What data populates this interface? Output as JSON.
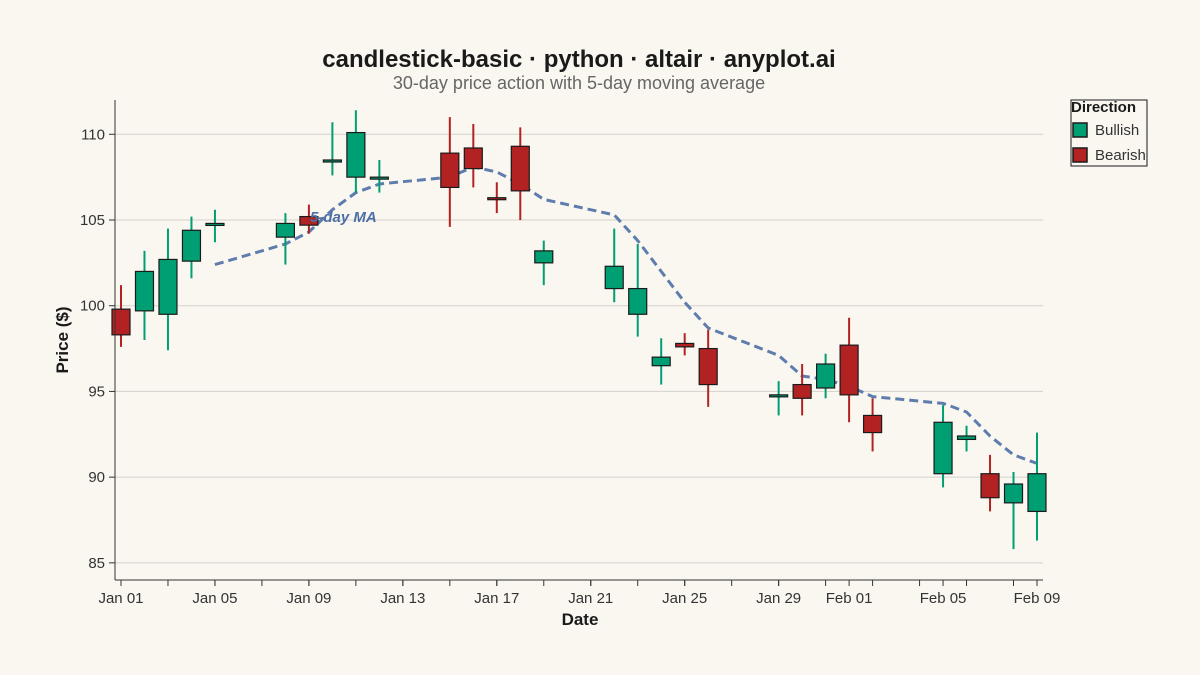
{
  "chart_data": {
    "type": "candlestick",
    "title": "candlestick-basic · python · altair · anyplot.ai",
    "subtitle": "30-day price action with 5-day moving average",
    "xlabel": "Date",
    "ylabel": "Price ($)",
    "ylim": [
      84,
      112
    ],
    "yticks": [
      85,
      90,
      95,
      100,
      105,
      110
    ],
    "x_start": "2024-01-01",
    "x_end": "2024-02-09",
    "xtick_labels": [
      "Jan 01",
      "Jan 05",
      "Jan 09",
      "Jan 13",
      "Jan 17",
      "Jan 21",
      "Jan 25",
      "Jan 29",
      "Feb 01",
      "Feb 05",
      "Feb 09"
    ],
    "xtick_dates": [
      "2024-01-01",
      "2024-01-05",
      "2024-01-09",
      "2024-01-13",
      "2024-01-17",
      "2024-01-21",
      "2024-01-25",
      "2024-01-29",
      "2024-02-01",
      "2024-02-05",
      "2024-02-09"
    ],
    "grid": true,
    "legend": {
      "title": "Direction",
      "placement": "top-right",
      "entries": [
        {
          "name": "Bullish",
          "color": "#009E73"
        },
        {
          "name": "Bearish",
          "color": "#B22222"
        }
      ]
    },
    "ma_label": "5-day MA",
    "ma_color": "#4C6FA5",
    "colors": {
      "bullish": "#009E73",
      "bearish": "#B22222",
      "outline": "#1a1a1a"
    },
    "candles": [
      {
        "date": "2024-01-01",
        "open": 99.8,
        "high": 101.2,
        "low": 97.6,
        "close": 98.3
      },
      {
        "date": "2024-01-02",
        "open": 99.7,
        "high": 103.2,
        "low": 98.0,
        "close": 102.0
      },
      {
        "date": "2024-01-03",
        "open": 99.5,
        "high": 104.5,
        "low": 97.4,
        "close": 102.7
      },
      {
        "date": "2024-01-04",
        "open": 102.6,
        "high": 105.2,
        "low": 101.6,
        "close": 104.4
      },
      {
        "date": "2024-01-05",
        "open": 104.7,
        "high": 105.6,
        "low": 103.7,
        "close": 104.8
      },
      {
        "date": "2024-01-08",
        "open": 104.0,
        "high": 105.4,
        "low": 102.4,
        "close": 104.8
      },
      {
        "date": "2024-01-09",
        "open": 105.2,
        "high": 105.9,
        "low": 104.2,
        "close": 104.7
      },
      {
        "date": "2024-01-10",
        "open": 108.4,
        "high": 110.7,
        "low": 107.6,
        "close": 108.5
      },
      {
        "date": "2024-01-11",
        "open": 107.5,
        "high": 111.4,
        "low": 106.6,
        "close": 110.1
      },
      {
        "date": "2024-01-12",
        "open": 107.5,
        "high": 108.5,
        "low": 106.6,
        "close": 107.5
      },
      {
        "date": "2024-01-15",
        "open": 108.9,
        "high": 111.0,
        "low": 104.6,
        "close": 106.9
      },
      {
        "date": "2024-01-16",
        "open": 109.2,
        "high": 110.6,
        "low": 106.9,
        "close": 108.0
      },
      {
        "date": "2024-01-17",
        "open": 106.3,
        "high": 107.2,
        "low": 105.4,
        "close": 106.2
      },
      {
        "date": "2024-01-18",
        "open": 109.3,
        "high": 110.4,
        "low": 105.0,
        "close": 106.7
      },
      {
        "date": "2024-01-19",
        "open": 102.5,
        "high": 103.8,
        "low": 101.2,
        "close": 103.2
      },
      {
        "date": "2024-01-22",
        "open": 101.0,
        "high": 104.5,
        "low": 100.2,
        "close": 102.3
      },
      {
        "date": "2024-01-23",
        "open": 99.5,
        "high": 103.6,
        "low": 98.2,
        "close": 101.0
      },
      {
        "date": "2024-01-24",
        "open": 96.5,
        "high": 98.1,
        "low": 95.4,
        "close": 97.0
      },
      {
        "date": "2024-01-25",
        "open": 97.8,
        "high": 98.4,
        "low": 97.1,
        "close": 97.6
      },
      {
        "date": "2024-01-26",
        "open": 97.5,
        "high": 98.6,
        "low": 94.1,
        "close": 95.4
      },
      {
        "date": "2024-01-29",
        "open": 94.8,
        "high": 95.6,
        "low": 93.6,
        "close": 94.8
      },
      {
        "date": "2024-01-30",
        "open": 95.4,
        "high": 96.6,
        "low": 93.6,
        "close": 94.6
      },
      {
        "date": "2024-01-31",
        "open": 95.2,
        "high": 97.2,
        "low": 94.6,
        "close": 96.6
      },
      {
        "date": "2024-02-01",
        "open": 97.7,
        "high": 99.3,
        "low": 93.2,
        "close": 94.8
      },
      {
        "date": "2024-02-02",
        "open": 93.6,
        "high": 94.6,
        "low": 91.5,
        "close": 92.6
      },
      {
        "date": "2024-02-05",
        "open": 90.2,
        "high": 94.2,
        "low": 89.4,
        "close": 93.2
      },
      {
        "date": "2024-02-06",
        "open": 92.2,
        "high": 93.0,
        "low": 91.5,
        "close": 92.4
      },
      {
        "date": "2024-02-07",
        "open": 90.2,
        "high": 91.3,
        "low": 88.0,
        "close": 88.8
      },
      {
        "date": "2024-02-08",
        "open": 88.5,
        "high": 90.3,
        "low": 85.8,
        "close": 89.6
      },
      {
        "date": "2024-02-09",
        "open": 88.0,
        "high": 92.6,
        "low": 86.3,
        "close": 90.2
      }
    ],
    "moving_average": [
      {
        "date": "2024-01-05",
        "value": 102.4
      },
      {
        "date": "2024-01-08",
        "value": 103.6
      },
      {
        "date": "2024-01-09",
        "value": 104.3
      },
      {
        "date": "2024-01-10",
        "value": 105.6
      },
      {
        "date": "2024-01-11",
        "value": 106.6
      },
      {
        "date": "2024-01-12",
        "value": 107.1
      },
      {
        "date": "2024-01-15",
        "value": 107.5
      },
      {
        "date": "2024-01-16",
        "value": 108.1
      },
      {
        "date": "2024-01-17",
        "value": 107.8
      },
      {
        "date": "2024-01-18",
        "value": 107.1
      },
      {
        "date": "2024-01-19",
        "value": 106.2
      },
      {
        "date": "2024-01-22",
        "value": 105.3
      },
      {
        "date": "2024-01-23",
        "value": 103.8
      },
      {
        "date": "2024-01-24",
        "value": 102.0
      },
      {
        "date": "2024-01-25",
        "value": 100.2
      },
      {
        "date": "2024-01-26",
        "value": 98.7
      },
      {
        "date": "2024-01-29",
        "value": 97.1
      },
      {
        "date": "2024-01-30",
        "value": 95.9
      },
      {
        "date": "2024-01-31",
        "value": 95.7
      },
      {
        "date": "2024-02-01",
        "value": 95.3
      },
      {
        "date": "2024-02-02",
        "value": 94.7
      },
      {
        "date": "2024-02-05",
        "value": 94.3
      },
      {
        "date": "2024-02-06",
        "value": 93.8
      },
      {
        "date": "2024-02-07",
        "value": 92.4
      },
      {
        "date": "2024-02-08",
        "value": 91.3
      },
      {
        "date": "2024-02-09",
        "value": 90.8
      }
    ]
  }
}
